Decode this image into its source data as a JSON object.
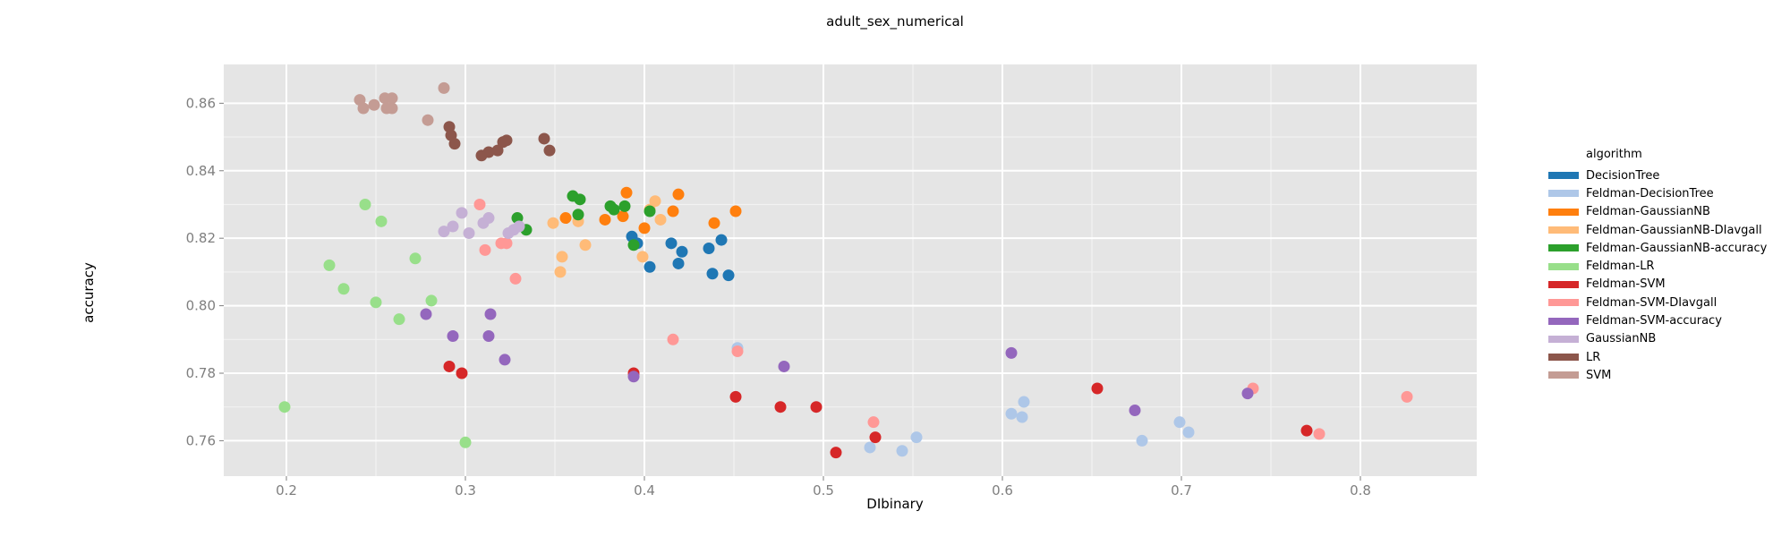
{
  "chart_data": {
    "type": "scatter",
    "title": "adult_sex_numerical",
    "xlabel": "DIbinary",
    "ylabel": "accuracy",
    "xlim": [
      0.165,
      0.865
    ],
    "ylim": [
      0.7495,
      0.8715
    ],
    "xticks": [
      0.2,
      0.3,
      0.4,
      0.5,
      0.6,
      0.7,
      0.8
    ],
    "xtick_labels": [
      "0.2",
      "0.3",
      "0.4",
      "0.5",
      "0.6",
      "0.7",
      "0.8"
    ],
    "yticks": [
      0.76,
      0.78,
      0.8,
      0.82,
      0.84,
      0.86
    ],
    "ytick_labels": [
      "0.76",
      "0.78",
      "0.80",
      "0.82",
      "0.84",
      "0.86"
    ],
    "grid": true,
    "legend_title": "algorithm",
    "legend_position": "right",
    "series": [
      {
        "name": "DecisionTree",
        "color": "#1f77b4",
        "x": [
          0.393,
          0.396,
          0.403,
          0.415,
          0.419,
          0.421,
          0.436,
          0.438,
          0.443,
          0.447
        ],
        "y": [
          0.8205,
          0.8185,
          0.8115,
          0.8185,
          0.8125,
          0.816,
          0.817,
          0.8095,
          0.8195,
          0.809
        ]
      },
      {
        "name": "Feldman-DecisionTree",
        "color": "#aec7e8",
        "x": [
          0.452,
          0.526,
          0.544,
          0.552,
          0.605,
          0.611,
          0.612,
          0.678,
          0.699,
          0.704
        ],
        "y": [
          0.7875,
          0.758,
          0.757,
          0.761,
          0.768,
          0.767,
          0.7715,
          0.76,
          0.7655,
          0.7625
        ]
      },
      {
        "name": "Feldman-GaussianNB",
        "color": "#ff7f0e",
        "x": [
          0.356,
          0.378,
          0.388,
          0.39,
          0.4,
          0.416,
          0.419,
          0.439,
          0.451
        ],
        "y": [
          0.826,
          0.8255,
          0.8265,
          0.8335,
          0.823,
          0.828,
          0.833,
          0.8245,
          0.828
        ]
      },
      {
        "name": "Feldman-GaussianNB-DIavgall",
        "color": "#ffbb78",
        "x": [
          0.349,
          0.353,
          0.354,
          0.363,
          0.367,
          0.399,
          0.403,
          0.406,
          0.409
        ],
        "y": [
          0.8245,
          0.81,
          0.8145,
          0.825,
          0.818,
          0.8145,
          0.8285,
          0.831,
          0.8255
        ]
      },
      {
        "name": "Feldman-GaussianNB-accuracy",
        "color": "#2ca02c",
        "x": [
          0.329,
          0.334,
          0.36,
          0.363,
          0.364,
          0.381,
          0.383,
          0.389,
          0.394,
          0.403
        ],
        "y": [
          0.826,
          0.8225,
          0.8325,
          0.827,
          0.8315,
          0.8295,
          0.8285,
          0.8295,
          0.818,
          0.828
        ]
      },
      {
        "name": "Feldman-LR",
        "color": "#98df8a",
        "x": [
          0.199,
          0.224,
          0.232,
          0.244,
          0.25,
          0.253,
          0.263,
          0.272,
          0.281,
          0.3
        ],
        "y": [
          0.77,
          0.812,
          0.805,
          0.83,
          0.801,
          0.825,
          0.796,
          0.814,
          0.8015,
          0.7595
        ]
      },
      {
        "name": "Feldman-SVM",
        "color": "#d62728",
        "x": [
          0.291,
          0.298,
          0.394,
          0.451,
          0.476,
          0.496,
          0.507,
          0.529,
          0.653,
          0.77
        ],
        "y": [
          0.782,
          0.78,
          0.78,
          0.773,
          0.77,
          0.77,
          0.7565,
          0.761,
          0.7755,
          0.763
        ]
      },
      {
        "name": "Feldman-SVM-DIavgall",
        "color": "#ff9896",
        "x": [
          0.308,
          0.311,
          0.32,
          0.323,
          0.328,
          0.416,
          0.452,
          0.528,
          0.74,
          0.777,
          0.826
        ],
        "y": [
          0.83,
          0.8165,
          0.8185,
          0.8185,
          0.808,
          0.79,
          0.7865,
          0.7655,
          0.7755,
          0.762,
          0.773
        ]
      },
      {
        "name": "Feldman-SVM-accuracy",
        "color": "#9467bd",
        "x": [
          0.278,
          0.293,
          0.313,
          0.314,
          0.322,
          0.394,
          0.478,
          0.605,
          0.674,
          0.737
        ],
        "y": [
          0.7975,
          0.791,
          0.791,
          0.7975,
          0.784,
          0.779,
          0.782,
          0.786,
          0.769,
          0.774
        ]
      },
      {
        "name": "GaussianNB",
        "color": "#c5b0d5",
        "x": [
          0.288,
          0.293,
          0.298,
          0.302,
          0.31,
          0.313,
          0.324,
          0.327,
          0.33
        ],
        "y": [
          0.822,
          0.8235,
          0.8275,
          0.8215,
          0.8245,
          0.826,
          0.8215,
          0.8225,
          0.8235
        ]
      },
      {
        "name": "LR",
        "color": "#8c564b",
        "x": [
          0.291,
          0.292,
          0.294,
          0.309,
          0.313,
          0.318,
          0.321,
          0.323,
          0.344,
          0.347
        ],
        "y": [
          0.853,
          0.8505,
          0.848,
          0.8445,
          0.8455,
          0.846,
          0.8485,
          0.849,
          0.8495,
          0.846
        ]
      },
      {
        "name": "SVM",
        "color": "#c49c94",
        "x": [
          0.241,
          0.243,
          0.249,
          0.255,
          0.256,
          0.259,
          0.259,
          0.279,
          0.288
        ],
        "y": [
          0.861,
          0.8585,
          0.8595,
          0.8615,
          0.8585,
          0.8585,
          0.8615,
          0.855,
          0.8645
        ]
      }
    ]
  }
}
